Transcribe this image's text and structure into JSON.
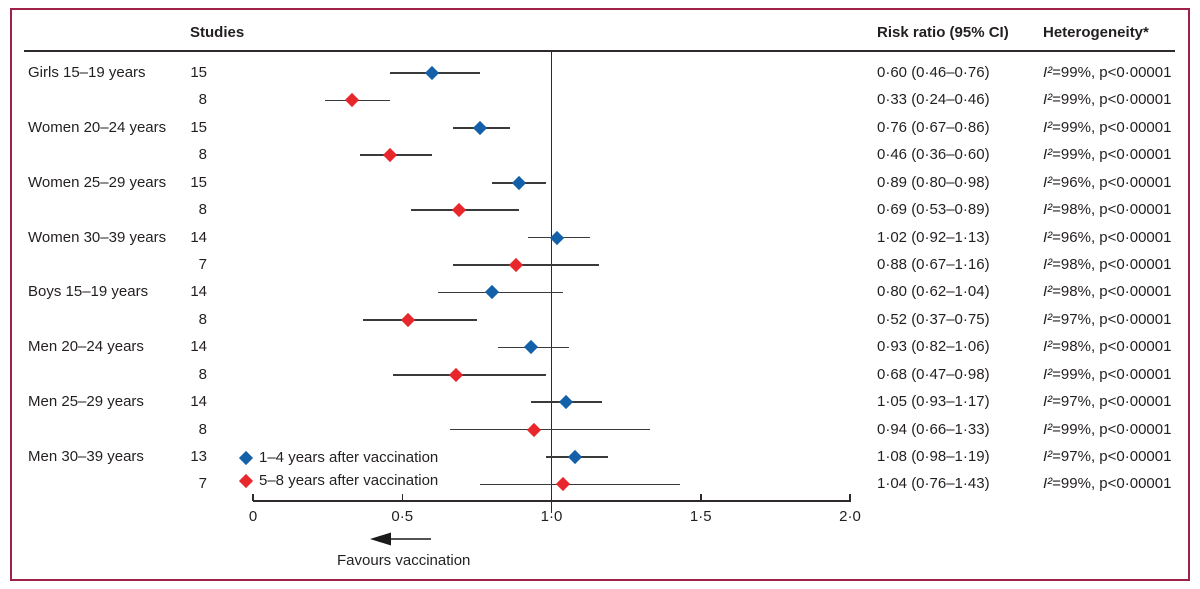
{
  "header": {
    "studies": "Studies",
    "risk_ratio": "Risk ratio (95% CI)",
    "heterogeneity": "Heterogeneity*"
  },
  "legend": {
    "items": [
      {
        "series": "s1",
        "label": "1–4 years after vaccination"
      },
      {
        "series": "s2",
        "label": "5–8 years after vaccination"
      }
    ]
  },
  "axis": {
    "ticks": [
      {
        "label": "0",
        "value": 0
      },
      {
        "label": "0·5",
        "value": 0.5
      },
      {
        "label": "1·0",
        "value": 1.0
      },
      {
        "label": "1·5",
        "value": 1.5
      },
      {
        "label": "2·0",
        "value": 2.0
      }
    ],
    "favours_label": "Favours vaccination",
    "reference_value": 1.0
  },
  "colors": {
    "s1": "#1561a9",
    "s2": "#e8272c",
    "frame": "#9e2247",
    "text": "#231f20",
    "ci_line": "#3a3a3a",
    "axis": "#2b2b2b"
  },
  "chart_data": {
    "type": "forest",
    "xlim": [
      0,
      2
    ],
    "reference_line": 1.0,
    "legend_position": "inside bottom-left of plot area",
    "rows": [
      {
        "group": "Girls 15–19 years",
        "studies": "15",
        "series": "s1",
        "rr": 0.6,
        "lo": 0.46,
        "hi": 0.76,
        "rr_text": "0·60 (0·46–0·76)",
        "het": "I²=99%, p<0·00001"
      },
      {
        "group": "",
        "studies": "8",
        "series": "s2",
        "rr": 0.33,
        "lo": 0.24,
        "hi": 0.46,
        "rr_text": "0·33 (0·24–0·46)",
        "het": "I²=99%, p<0·00001"
      },
      {
        "group": "Women 20–24 years",
        "studies": "15",
        "series": "s1",
        "rr": 0.76,
        "lo": 0.67,
        "hi": 0.86,
        "rr_text": "0·76 (0·67–0·86)",
        "het": "I²=99%, p<0·00001"
      },
      {
        "group": "",
        "studies": "8",
        "series": "s2",
        "rr": 0.46,
        "lo": 0.36,
        "hi": 0.6,
        "rr_text": "0·46 (0·36–0·60)",
        "het": "I²=99%, p<0·00001"
      },
      {
        "group": "Women 25–29 years",
        "studies": "15",
        "series": "s1",
        "rr": 0.89,
        "lo": 0.8,
        "hi": 0.98,
        "rr_text": "0·89 (0·80–0·98)",
        "het": "I²=96%, p<0·00001"
      },
      {
        "group": "",
        "studies": "8",
        "series": "s2",
        "rr": 0.69,
        "lo": 0.53,
        "hi": 0.89,
        "rr_text": "0·69 (0·53–0·89)",
        "het": "I²=98%, p<0·00001"
      },
      {
        "group": "Women 30–39 years",
        "studies": "14",
        "series": "s1",
        "rr": 1.02,
        "lo": 0.92,
        "hi": 1.13,
        "rr_text": "1·02 (0·92–1·13)",
        "het": "I²=96%, p<0·00001"
      },
      {
        "group": "",
        "studies": "7",
        "series": "s2",
        "rr": 0.88,
        "lo": 0.67,
        "hi": 1.16,
        "rr_text": "0·88 (0·67–1·16)",
        "het": "I²=98%, p<0·00001"
      },
      {
        "group": "Boys 15–19 years",
        "studies": "14",
        "series": "s1",
        "rr": 0.8,
        "lo": 0.62,
        "hi": 1.04,
        "rr_text": "0·80 (0·62–1·04)",
        "het": "I²=98%, p<0·00001"
      },
      {
        "group": "",
        "studies": "8",
        "series": "s2",
        "rr": 0.52,
        "lo": 0.37,
        "hi": 0.75,
        "rr_text": "0·52 (0·37–0·75)",
        "het": "I²=97%, p<0·00001"
      },
      {
        "group": "Men 20–24 years",
        "studies": "14",
        "series": "s1",
        "rr": 0.93,
        "lo": 0.82,
        "hi": 1.06,
        "rr_text": "0·93 (0·82–1·06)",
        "het": "I²=98%, p<0·00001"
      },
      {
        "group": "",
        "studies": "8",
        "series": "s2",
        "rr": 0.68,
        "lo": 0.47,
        "hi": 0.98,
        "rr_text": "0·68 (0·47–0·98)",
        "het": "I²=99%, p<0·00001"
      },
      {
        "group": "Men 25–29 years",
        "studies": "14",
        "series": "s1",
        "rr": 1.05,
        "lo": 0.93,
        "hi": 1.17,
        "rr_text": "1·05 (0·93–1·17)",
        "het": "I²=97%, p<0·00001"
      },
      {
        "group": "",
        "studies": "8",
        "series": "s2",
        "rr": 0.94,
        "lo": 0.66,
        "hi": 1.33,
        "rr_text": "0·94 (0·66–1·33)",
        "het": "I²=99%, p<0·00001"
      },
      {
        "group": "Men 30–39 years",
        "studies": "13",
        "series": "s1",
        "rr": 1.08,
        "lo": 0.98,
        "hi": 1.19,
        "rr_text": "1·08 (0·98–1·19)",
        "het": "I²=97%, p<0·00001"
      },
      {
        "group": "",
        "studies": "7",
        "series": "s2",
        "rr": 1.04,
        "lo": 0.76,
        "hi": 1.43,
        "rr_text": "1·04 (0·76–1·43)",
        "het": "I²=99%, p<0·00001"
      }
    ]
  }
}
